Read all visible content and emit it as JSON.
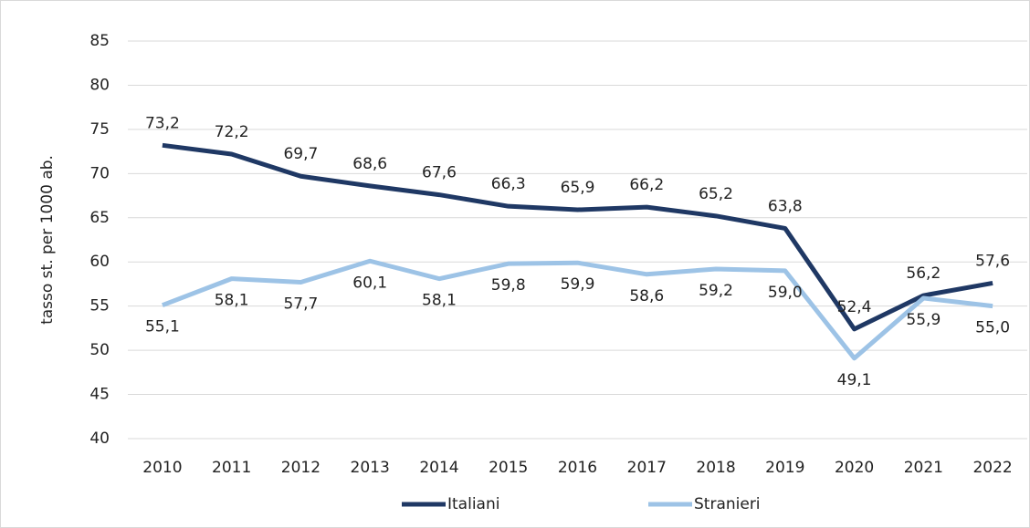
{
  "chart_data": {
    "type": "line",
    "y_axis_label": "tasso st. per 1000 ab.",
    "categories": [
      "2010",
      "2011",
      "2012",
      "2013",
      "2014",
      "2015",
      "2016",
      "2017",
      "2018",
      "2019",
      "2020",
      "2021",
      "2022"
    ],
    "series": [
      {
        "name": "Italiani",
        "color": "#1f3864",
        "values": [
          73.2,
          72.2,
          69.7,
          68.6,
          67.6,
          66.3,
          65.9,
          66.2,
          65.2,
          63.8,
          52.4,
          56.2,
          57.6
        ],
        "value_labels": [
          "73,2",
          "72,2",
          "69,7",
          "68,6",
          "67,6",
          "66,3",
          "65,9",
          "66,2",
          "65,2",
          "63,8",
          "52,4",
          "56,2",
          "57,6"
        ]
      },
      {
        "name": "Stranieri",
        "color": "#9dc3e6",
        "values": [
          55.1,
          58.1,
          57.7,
          60.1,
          58.1,
          59.8,
          59.9,
          58.6,
          59.2,
          59.0,
          49.1,
          55.9,
          55.0
        ],
        "value_labels": [
          "55,1",
          "58,1",
          "57,7",
          "60,1",
          "58,1",
          "59,8",
          "59,9",
          "58,6",
          "59,2",
          "59,0",
          "49,1",
          "55,9",
          "55,0"
        ]
      }
    ],
    "ylim": [
      40,
      85
    ],
    "yticks": [
      40,
      45,
      50,
      55,
      60,
      65,
      70,
      75,
      80,
      85
    ],
    "grid": true,
    "legend": "bottom"
  }
}
